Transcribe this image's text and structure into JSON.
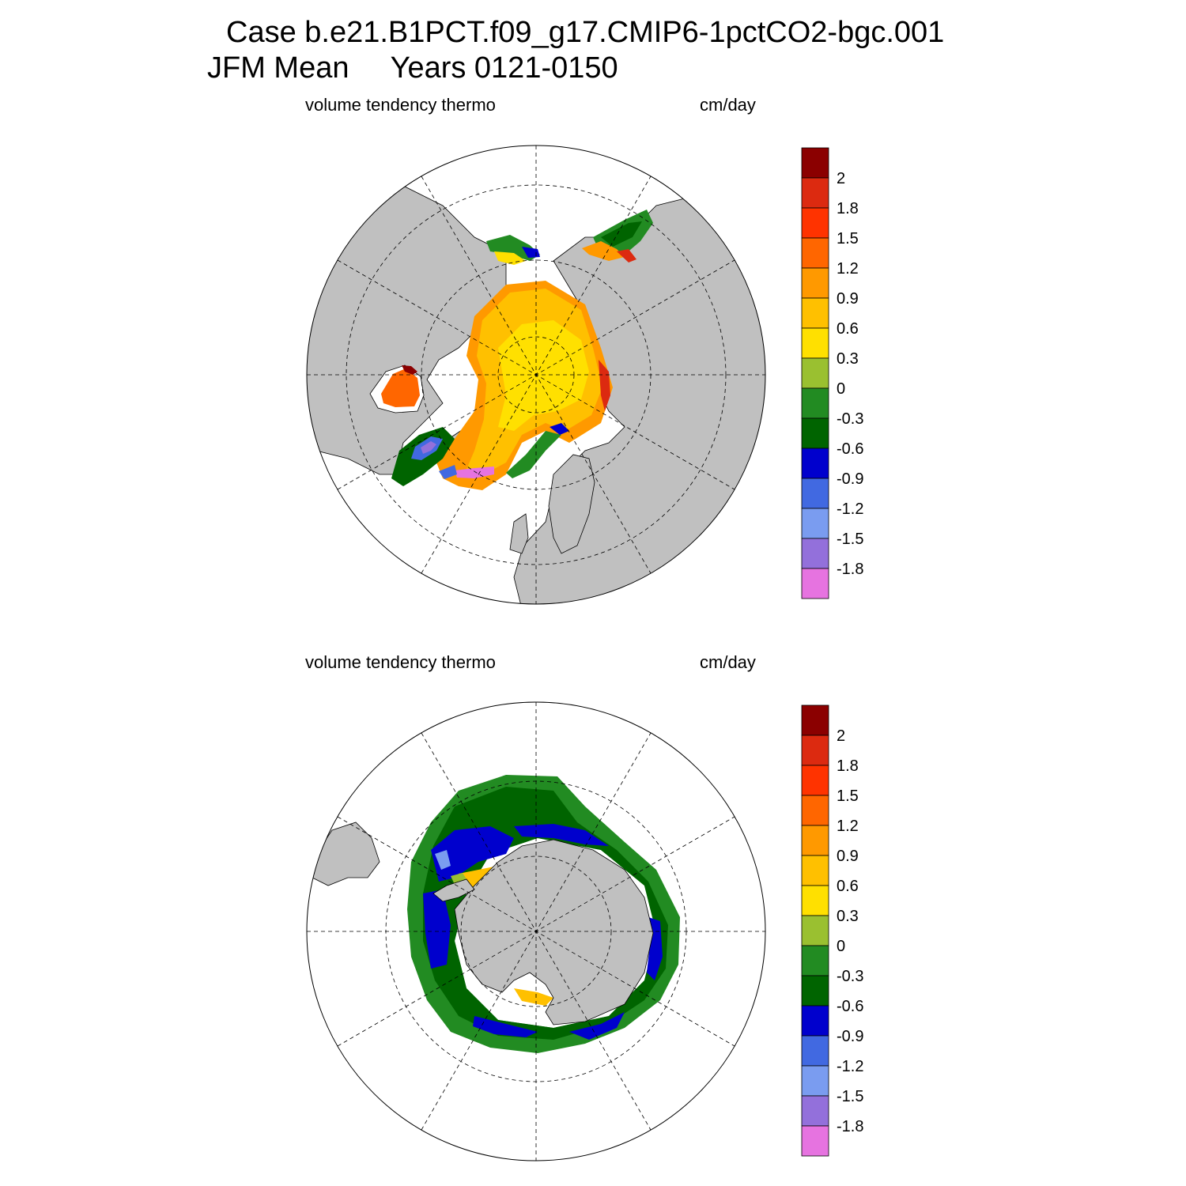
{
  "title": {
    "line1": "Case b.e21.B1PCT.f09_g17.CMIP6-1pctCO2-bgc.001",
    "line2": "JFM Mean     Years 0121-0150"
  },
  "panels": [
    {
      "id": "north",
      "left_label": "volume tendency thermo",
      "right_label": "cm/day"
    },
    {
      "id": "south",
      "left_label": "volume tendency thermo",
      "right_label": "cm/day"
    }
  ],
  "colorbar": {
    "colors": [
      "#8b0000",
      "#dc2a10",
      "#ff3300",
      "#ff6600",
      "#ff9900",
      "#ffc000",
      "#ffe000",
      "#9ac030",
      "#228b22",
      "#006400",
      "#0000cd",
      "#4169e1",
      "#7a9cf0",
      "#9370db",
      "#e673e0"
    ],
    "labels": [
      "2",
      "1.8",
      "1.5",
      "1.2",
      "0.9",
      "0.6",
      "0.3",
      "0",
      "-0.3",
      "-0.6",
      "-0.9",
      "-1.2",
      "-1.5",
      "-1.8"
    ]
  },
  "colors": {
    "land": "#c0c0c0",
    "ocean": "#ffffff"
  }
}
